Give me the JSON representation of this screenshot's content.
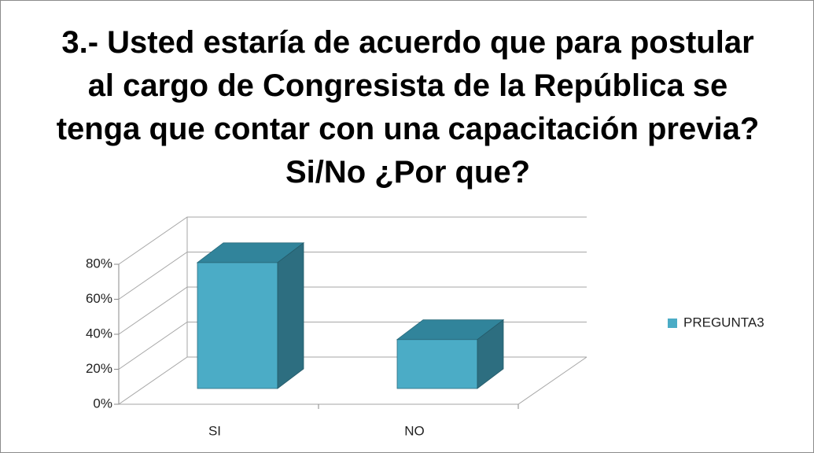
{
  "chart_data": {
    "type": "bar3d",
    "title": "3.- Usted estaría de acuerdo que para postular al cargo de Congresista de la República se tenga que contar con una capacitación previa?  Si/No ¿Por que?",
    "categories": [
      "SI",
      "NO"
    ],
    "series": [
      {
        "name": "PREGUNTA3",
        "color": "#4bacc6",
        "values": [
          72,
          28
        ]
      }
    ],
    "ylim": [
      0,
      80
    ],
    "yticks": [
      {
        "value": 0,
        "label": "0%"
      },
      {
        "value": 20,
        "label": "20%"
      },
      {
        "value": 40,
        "label": "40%"
      },
      {
        "value": 60,
        "label": "60%"
      },
      {
        "value": 80,
        "label": "80%"
      }
    ],
    "grid": true,
    "legend": "right"
  }
}
